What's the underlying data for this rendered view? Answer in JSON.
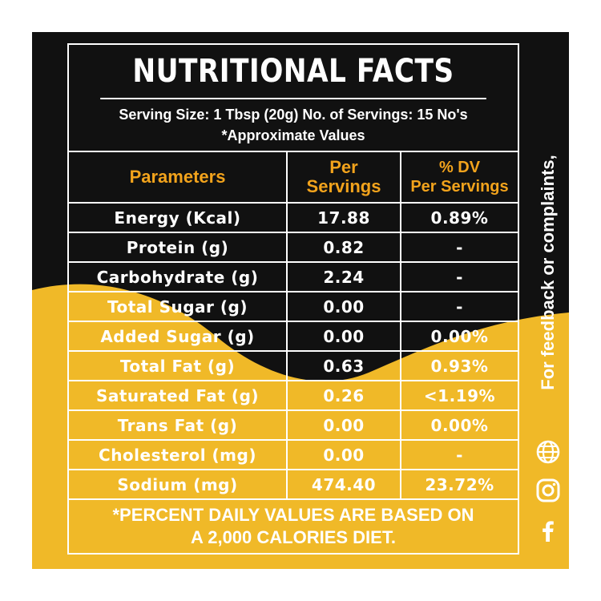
{
  "title": "NUTRITIONAL FACTS",
  "serving": {
    "line1": "Serving Size: 1 Tbsp (20g) No. of Servings: 15 No's",
    "line2": "*Approximate Values"
  },
  "table": {
    "headers": {
      "parameters": "Parameters",
      "per_line1": "Per",
      "per_line2": "Servings",
      "dv_line1": "% DV",
      "dv_line2": "Per Servings"
    },
    "rows": [
      {
        "param": "Energy (Kcal)",
        "per": "17.88",
        "dv": "0.89%"
      },
      {
        "param": "Protein (g)",
        "per": "0.82",
        "dv": "-"
      },
      {
        "param": "Carbohydrate (g)",
        "per": "2.24",
        "dv": "-"
      },
      {
        "param": "Total Sugar (g)",
        "per": "0.00",
        "dv": "-"
      },
      {
        "param": "Added Sugar (g)",
        "per": "0.00",
        "dv": "0.00%"
      },
      {
        "param": "Total Fat (g)",
        "per": "0.63",
        "dv": "0.93%"
      },
      {
        "param": "Saturated Fat (g)",
        "per": "0.26",
        "dv": "<1.19%"
      },
      {
        "param": "Trans Fat (g)",
        "per": "0.00",
        "dv": "0.00%"
      },
      {
        "param": "Cholesterol (mg)",
        "per": "0.00",
        "dv": "-"
      },
      {
        "param": "Sodium (mg)",
        "per": "474.40",
        "dv": "23.72%"
      }
    ]
  },
  "footer": {
    "line1": "*PERCENT DAILY VALUES ARE BASED ON",
    "line2": "A 2,000 CALORIES DIET."
  },
  "side": {
    "text": "For feedback or complaints,",
    "icons": [
      "globe-icon",
      "instagram-icon",
      "facebook-icon"
    ]
  },
  "colors": {
    "black": "#111111",
    "yellow": "#f0b928",
    "header_orange": "#f2a31c",
    "white": "#ffffff"
  }
}
